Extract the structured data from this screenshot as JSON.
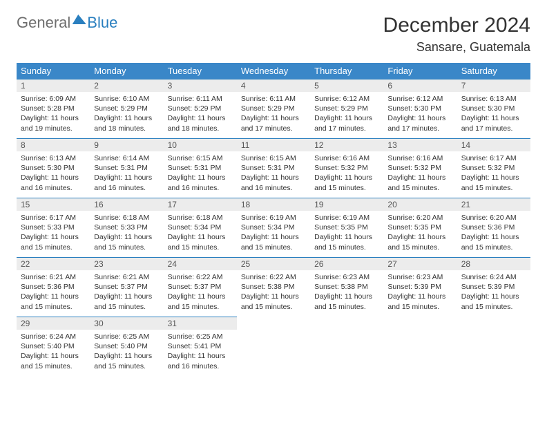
{
  "logo": {
    "part1": "General",
    "part2": "Blue"
  },
  "title": "December 2024",
  "location": "Sansare, Guatemala",
  "colors": {
    "header_bg": "#3a87c8",
    "header_text": "#ffffff",
    "border": "#2a7fbf",
    "daynum_bg": "#ececec",
    "logo_gray": "#6e6e6e",
    "logo_blue": "#2a7fbf"
  },
  "weekdays": [
    "Sunday",
    "Monday",
    "Tuesday",
    "Wednesday",
    "Thursday",
    "Friday",
    "Saturday"
  ],
  "first_weekday": 0,
  "days_in_month": 31,
  "days": {
    "1": {
      "sunrise": "Sunrise: 6:09 AM",
      "sunset": "Sunset: 5:28 PM",
      "daylight1": "Daylight: 11 hours",
      "daylight2": "and 19 minutes."
    },
    "2": {
      "sunrise": "Sunrise: 6:10 AM",
      "sunset": "Sunset: 5:29 PM",
      "daylight1": "Daylight: 11 hours",
      "daylight2": "and 18 minutes."
    },
    "3": {
      "sunrise": "Sunrise: 6:11 AM",
      "sunset": "Sunset: 5:29 PM",
      "daylight1": "Daylight: 11 hours",
      "daylight2": "and 18 minutes."
    },
    "4": {
      "sunrise": "Sunrise: 6:11 AM",
      "sunset": "Sunset: 5:29 PM",
      "daylight1": "Daylight: 11 hours",
      "daylight2": "and 17 minutes."
    },
    "5": {
      "sunrise": "Sunrise: 6:12 AM",
      "sunset": "Sunset: 5:29 PM",
      "daylight1": "Daylight: 11 hours",
      "daylight2": "and 17 minutes."
    },
    "6": {
      "sunrise": "Sunrise: 6:12 AM",
      "sunset": "Sunset: 5:30 PM",
      "daylight1": "Daylight: 11 hours",
      "daylight2": "and 17 minutes."
    },
    "7": {
      "sunrise": "Sunrise: 6:13 AM",
      "sunset": "Sunset: 5:30 PM",
      "daylight1": "Daylight: 11 hours",
      "daylight2": "and 17 minutes."
    },
    "8": {
      "sunrise": "Sunrise: 6:13 AM",
      "sunset": "Sunset: 5:30 PM",
      "daylight1": "Daylight: 11 hours",
      "daylight2": "and 16 minutes."
    },
    "9": {
      "sunrise": "Sunrise: 6:14 AM",
      "sunset": "Sunset: 5:31 PM",
      "daylight1": "Daylight: 11 hours",
      "daylight2": "and 16 minutes."
    },
    "10": {
      "sunrise": "Sunrise: 6:15 AM",
      "sunset": "Sunset: 5:31 PM",
      "daylight1": "Daylight: 11 hours",
      "daylight2": "and 16 minutes."
    },
    "11": {
      "sunrise": "Sunrise: 6:15 AM",
      "sunset": "Sunset: 5:31 PM",
      "daylight1": "Daylight: 11 hours",
      "daylight2": "and 16 minutes."
    },
    "12": {
      "sunrise": "Sunrise: 6:16 AM",
      "sunset": "Sunset: 5:32 PM",
      "daylight1": "Daylight: 11 hours",
      "daylight2": "and 15 minutes."
    },
    "13": {
      "sunrise": "Sunrise: 6:16 AM",
      "sunset": "Sunset: 5:32 PM",
      "daylight1": "Daylight: 11 hours",
      "daylight2": "and 15 minutes."
    },
    "14": {
      "sunrise": "Sunrise: 6:17 AM",
      "sunset": "Sunset: 5:32 PM",
      "daylight1": "Daylight: 11 hours",
      "daylight2": "and 15 minutes."
    },
    "15": {
      "sunrise": "Sunrise: 6:17 AM",
      "sunset": "Sunset: 5:33 PM",
      "daylight1": "Daylight: 11 hours",
      "daylight2": "and 15 minutes."
    },
    "16": {
      "sunrise": "Sunrise: 6:18 AM",
      "sunset": "Sunset: 5:33 PM",
      "daylight1": "Daylight: 11 hours",
      "daylight2": "and 15 minutes."
    },
    "17": {
      "sunrise": "Sunrise: 6:18 AM",
      "sunset": "Sunset: 5:34 PM",
      "daylight1": "Daylight: 11 hours",
      "daylight2": "and 15 minutes."
    },
    "18": {
      "sunrise": "Sunrise: 6:19 AM",
      "sunset": "Sunset: 5:34 PM",
      "daylight1": "Daylight: 11 hours",
      "daylight2": "and 15 minutes."
    },
    "19": {
      "sunrise": "Sunrise: 6:19 AM",
      "sunset": "Sunset: 5:35 PM",
      "daylight1": "Daylight: 11 hours",
      "daylight2": "and 15 minutes."
    },
    "20": {
      "sunrise": "Sunrise: 6:20 AM",
      "sunset": "Sunset: 5:35 PM",
      "daylight1": "Daylight: 11 hours",
      "daylight2": "and 15 minutes."
    },
    "21": {
      "sunrise": "Sunrise: 6:20 AM",
      "sunset": "Sunset: 5:36 PM",
      "daylight1": "Daylight: 11 hours",
      "daylight2": "and 15 minutes."
    },
    "22": {
      "sunrise": "Sunrise: 6:21 AM",
      "sunset": "Sunset: 5:36 PM",
      "daylight1": "Daylight: 11 hours",
      "daylight2": "and 15 minutes."
    },
    "23": {
      "sunrise": "Sunrise: 6:21 AM",
      "sunset": "Sunset: 5:37 PM",
      "daylight1": "Daylight: 11 hours",
      "daylight2": "and 15 minutes."
    },
    "24": {
      "sunrise": "Sunrise: 6:22 AM",
      "sunset": "Sunset: 5:37 PM",
      "daylight1": "Daylight: 11 hours",
      "daylight2": "and 15 minutes."
    },
    "25": {
      "sunrise": "Sunrise: 6:22 AM",
      "sunset": "Sunset: 5:38 PM",
      "daylight1": "Daylight: 11 hours",
      "daylight2": "and 15 minutes."
    },
    "26": {
      "sunrise": "Sunrise: 6:23 AM",
      "sunset": "Sunset: 5:38 PM",
      "daylight1": "Daylight: 11 hours",
      "daylight2": "and 15 minutes."
    },
    "27": {
      "sunrise": "Sunrise: 6:23 AM",
      "sunset": "Sunset: 5:39 PM",
      "daylight1": "Daylight: 11 hours",
      "daylight2": "and 15 minutes."
    },
    "28": {
      "sunrise": "Sunrise: 6:24 AM",
      "sunset": "Sunset: 5:39 PM",
      "daylight1": "Daylight: 11 hours",
      "daylight2": "and 15 minutes."
    },
    "29": {
      "sunrise": "Sunrise: 6:24 AM",
      "sunset": "Sunset: 5:40 PM",
      "daylight1": "Daylight: 11 hours",
      "daylight2": "and 15 minutes."
    },
    "30": {
      "sunrise": "Sunrise: 6:25 AM",
      "sunset": "Sunset: 5:40 PM",
      "daylight1": "Daylight: 11 hours",
      "daylight2": "and 15 minutes."
    },
    "31": {
      "sunrise": "Sunrise: 6:25 AM",
      "sunset": "Sunset: 5:41 PM",
      "daylight1": "Daylight: 11 hours",
      "daylight2": "and 16 minutes."
    }
  }
}
